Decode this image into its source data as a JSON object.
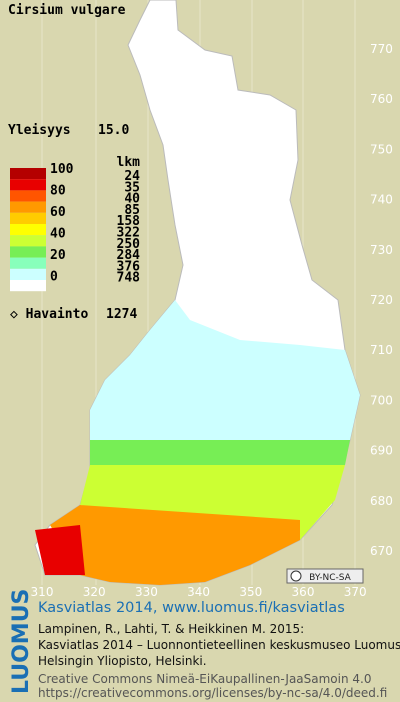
{
  "title": "Cirsium vulgare",
  "frequency": {
    "label": "Yleisyys",
    "value": "15.0"
  },
  "legend": {
    "levels": [
      "100",
      "80",
      "60",
      "40",
      "20",
      "0"
    ],
    "count_header": "lkm",
    "colors": [
      "#b40000",
      "#e80000",
      "#ff5500",
      "#ff9900",
      "#ffcc00",
      "#ffff00",
      "#ccff33",
      "#77ee55",
      "#88ffbb",
      "#ccffff",
      "#ffffff"
    ],
    "counts": [
      "24",
      "35",
      "40",
      "85",
      "158",
      "322",
      "250",
      "284",
      "376",
      "748"
    ],
    "observations": {
      "label": "Havainto",
      "value": "1274"
    }
  },
  "y_axis": [
    "770",
    "760",
    "750",
    "740",
    "730",
    "720",
    "710",
    "700",
    "690",
    "680",
    "670"
  ],
  "x_axis": [
    "310",
    "320",
    "330",
    "340",
    "350",
    "360",
    "370"
  ],
  "badge": "BY-NC-SA",
  "footer": {
    "brand": "LUOMUS",
    "link": "Kasviatlas 2014, www.luomus.fi/kasviatlas",
    "citation": [
      "Lampinen, R., Lahti, T. & Heikkinen M. 2015:",
      "Kasviatlas 2014 – Luonnontieteellinen keskusmuseo Luomus,",
      "Helsingin Yliopisto, Helsinki."
    ],
    "license": [
      "Creative Commons Nimeä-EiKaupallinen-JaaSamoin 4.0",
      "https://creativecommons.org/licenses/by-nc-sa/4.0/deed.fi"
    ]
  }
}
